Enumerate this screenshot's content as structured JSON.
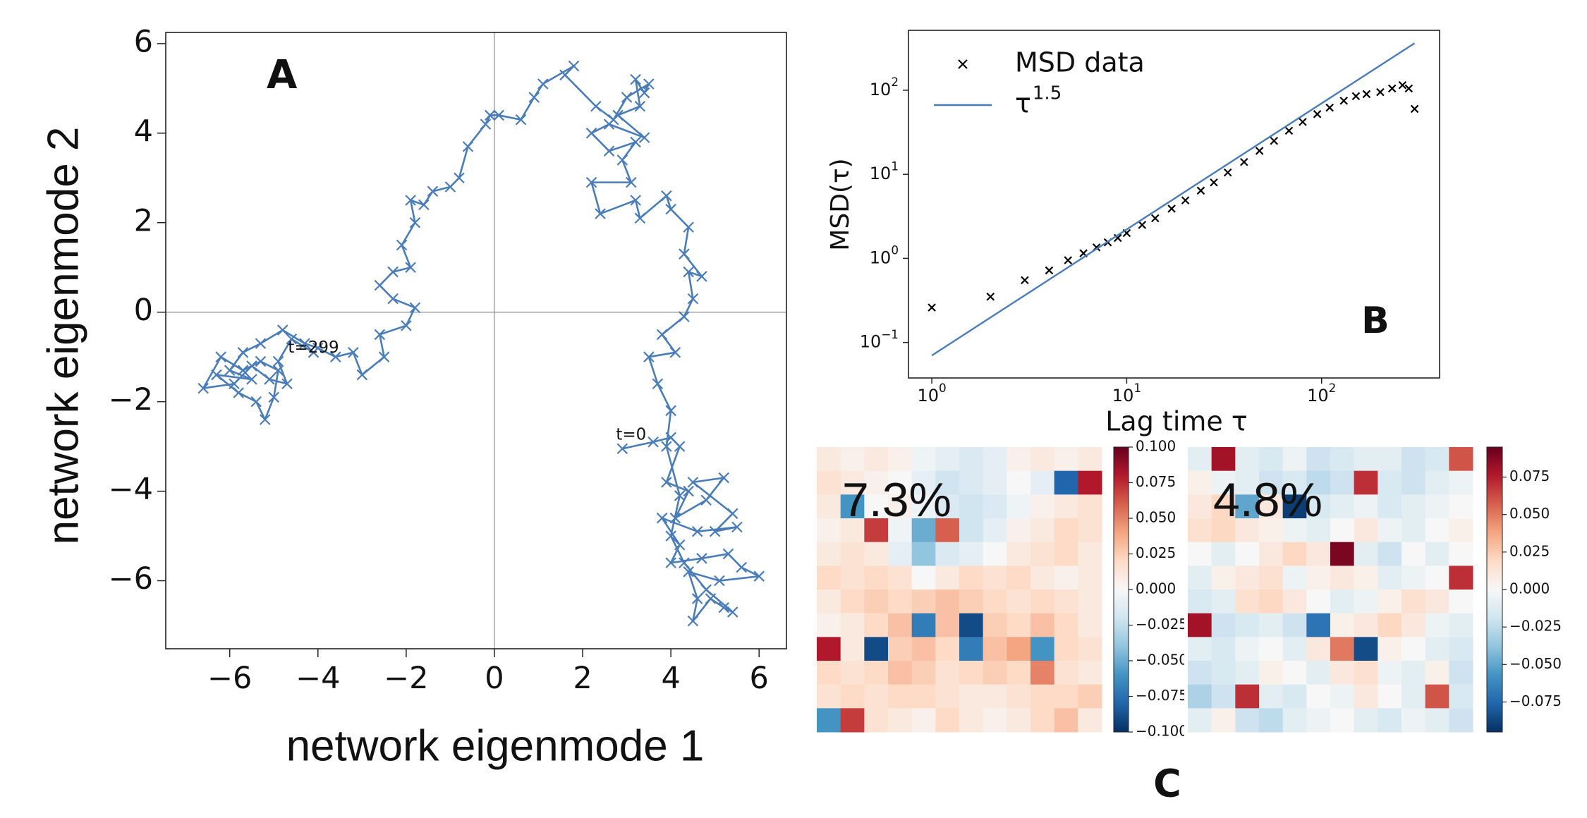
{
  "chart_data": [
    {
      "type": "line",
      "panel_label": "A",
      "xlabel": "network eigenmode 1",
      "ylabel": "network eigenmode 2",
      "color": "#4a7db8",
      "marker": "x",
      "zero_lines": true,
      "xlim": [
        -7.45,
        6.62
      ],
      "ylim": [
        -7.52,
        6.25
      ],
      "xticks": [
        {
          "value": -6,
          "label": "−6"
        },
        {
          "value": -4,
          "label": "−4"
        },
        {
          "value": -2,
          "label": "−2"
        },
        0,
        2,
        4,
        6
      ],
      "yticks": [
        {
          "value": -6,
          "label": "−6"
        },
        {
          "value": -4,
          "label": "−4"
        },
        {
          "value": -2,
          "label": "−2"
        },
        0,
        2,
        4,
        6
      ],
      "annotations": [
        {
          "text": "t=0",
          "x": 3.1,
          "y": -2.75
        },
        {
          "text": "t=299",
          "x": -4.1,
          "y": -0.8
        }
      ],
      "x": [
        2.9,
        3.6,
        4.0,
        4.2,
        3.9,
        4.4,
        4.1,
        4.8,
        5.2,
        4.5,
        5.4,
        5.0,
        5.5,
        4.6,
        3.8,
        4.2,
        4.0,
        4.7,
        5.3,
        5.6,
        6.0,
        5.1,
        4.4,
        4.6,
        4.5,
        4.9,
        5.2,
        5.4,
        4.8,
        4.3,
        4.0,
        4.2,
        3.9,
        4.0,
        3.7,
        3.5,
        4.1,
        3.8,
        4.3,
        4.5,
        4.4,
        4.7,
        4.3,
        4.4,
        4.0,
        3.9,
        3.3,
        3.2,
        2.4,
        2.2,
        3.1,
        2.9,
        3.2,
        2.6,
        2.2,
        2.6,
        3.4,
        2.8,
        3.3,
        3.2,
        3.4,
        3.5,
        3.0,
        2.7,
        2.3,
        1.6,
        1.8,
        1.1,
        0.9,
        0.6,
        0.1,
        -0.1,
        -0.2,
        -0.6,
        -0.8,
        -1.0,
        -1.4,
        -1.6,
        -1.9,
        -1.8,
        -2.1,
        -1.9,
        -2.3,
        -2.6,
        -2.3,
        -1.8,
        -2.0,
        -2.6,
        -2.5,
        -3.0,
        -3.2,
        -3.6,
        -4.0,
        -4.3,
        -4.8,
        -5.3,
        -5.7,
        -6.0,
        -5.5,
        -6.3,
        -5.8,
        -5.4,
        -5.2,
        -5.0,
        -4.9,
        -5.3,
        -5.7,
        -6.2,
        -6.6,
        -5.9,
        -5.5,
        -5.1,
        -4.7,
        -4.9,
        -4.6,
        -4.1
      ],
      "values": [
        -3.05,
        -2.9,
        -2.8,
        -3.0,
        -3.8,
        -4.0,
        -4.6,
        -4.2,
        -3.7,
        -3.8,
        -4.5,
        -4.9,
        -4.8,
        -4.9,
        -4.6,
        -5.2,
        -5.6,
        -5.5,
        -5.4,
        -5.7,
        -5.9,
        -6.0,
        -5.8,
        -6.4,
        -6.9,
        -6.4,
        -6.6,
        -6.7,
        -6.2,
        -5.6,
        -5.0,
        -4.1,
        -3.0,
        -2.2,
        -1.6,
        -1.0,
        -0.9,
        -0.5,
        -0.1,
        0.3,
        0.9,
        0.8,
        1.3,
        1.9,
        2.3,
        2.6,
        2.1,
        2.5,
        2.2,
        2.9,
        2.9,
        3.4,
        3.8,
        3.6,
        4.0,
        4.2,
        3.9,
        4.4,
        4.6,
        5.2,
        4.9,
        5.1,
        4.8,
        4.3,
        4.6,
        5.3,
        5.5,
        5.1,
        4.8,
        4.3,
        4.4,
        4.4,
        4.2,
        3.7,
        3.0,
        2.8,
        2.7,
        2.4,
        2.5,
        2.0,
        1.5,
        1.0,
        0.9,
        0.6,
        0.3,
        0.1,
        -0.3,
        -0.5,
        -1.0,
        -1.4,
        -0.9,
        -1.0,
        -0.8,
        -0.7,
        -0.4,
        -0.7,
        -0.9,
        -1.3,
        -1.5,
        -1.4,
        -1.8,
        -2.0,
        -2.4,
        -1.9,
        -1.3,
        -1.1,
        -1.3,
        -1.0,
        -1.7,
        -1.6,
        -1.2,
        -1.5,
        -1.6,
        -1.1,
        -0.6,
        -0.9
      ]
    },
    {
      "type": "scatter",
      "panel_label": "B",
      "xlabel": "Lag time τ",
      "ylabel": "MSD(τ)",
      "log_x": true,
      "log_y": true,
      "legend": "upper left",
      "xlim": [
        0.759,
        403
      ],
      "ylim": [
        0.0378,
        516
      ],
      "xticks": [
        {
          "value": 1,
          "label": "10",
          "sup": "0"
        },
        {
          "value": 10,
          "label": "10",
          "sup": "1"
        },
        {
          "value": 100,
          "label": "10",
          "sup": "2"
        }
      ],
      "yticks": [
        {
          "value": 0.1,
          "label": "10",
          "sup": "−1"
        },
        {
          "value": 1,
          "label": "10",
          "sup": "0"
        },
        {
          "value": 10,
          "label": "10",
          "sup": "1"
        },
        {
          "value": 100,
          "label": "10",
          "sup": "2"
        }
      ],
      "series": [
        {
          "name": "MSD data",
          "color": "#000000",
          "marker": "x",
          "x": [
            1,
            2,
            3,
            4,
            5,
            6,
            7,
            8,
            9,
            10,
            12,
            14,
            17,
            20,
            24,
            28,
            33,
            40,
            48,
            57,
            68,
            80,
            95,
            110,
            130,
            150,
            170,
            200,
            230,
            260,
            280,
            300
          ],
          "values": [
            0.26,
            0.35,
            0.55,
            0.72,
            0.95,
            1.15,
            1.35,
            1.55,
            1.75,
            2.0,
            2.5,
            3.0,
            3.9,
            4.9,
            6.4,
            8,
            10.5,
            14,
            19,
            25,
            33,
            42,
            52,
            62,
            75,
            85,
            90,
            95,
            105,
            115,
            105,
            60
          ]
        },
        {
          "name": "τ",
          "sup": "1.5",
          "color": "#4a7db8",
          "marker": "line",
          "x": [
            1,
            300
          ],
          "values": [
            0.07,
            363
          ]
        }
      ]
    },
    {
      "type": "heatmap",
      "panel_label": "C",
      "annotation": "7.3%",
      "colormap": "RdBu_r",
      "zlim": [
        -0.1,
        0.1
      ],
      "colorbar_ticks": [
        {
          "value": 0.1,
          "label": "0.100"
        },
        {
          "value": 0.075,
          "label": "0.075"
        },
        {
          "value": 0.05,
          "label": "0.050"
        },
        {
          "value": 0.025,
          "label": "0.025"
        },
        {
          "value": 0,
          "label": "0.000"
        },
        {
          "value": -0.025,
          "label": "−0.025"
        },
        {
          "value": -0.05,
          "label": "−0.050"
        },
        {
          "value": -0.075,
          "label": "−0.075"
        },
        {
          "value": -0.1,
          "label": "−0.100"
        }
      ],
      "values": [
        [
          0.01,
          0.005,
          0.01,
          0.005,
          -0.005,
          -0.01,
          -0.015,
          -0.01,
          0.005,
          0.01,
          0.005,
          0.01
        ],
        [
          0.015,
          0.01,
          0.005,
          0.0,
          -0.01,
          -0.02,
          -0.015,
          -0.01,
          0.0,
          -0.01,
          -0.08,
          0.08
        ],
        [
          0.01,
          -0.06,
          0.0,
          0.005,
          -0.005,
          -0.015,
          -0.02,
          -0.015,
          -0.005,
          0.005,
          0.01,
          0.015
        ],
        [
          0.005,
          0.01,
          0.07,
          -0.005,
          -0.05,
          0.06,
          -0.02,
          -0.01,
          0.005,
          0.01,
          0.02,
          0.015
        ],
        [
          0.01,
          0.015,
          0.01,
          -0.01,
          -0.04,
          -0.015,
          -0.01,
          0.0,
          0.01,
          0.015,
          0.02,
          0.01
        ],
        [
          0.02,
          0.015,
          0.02,
          0.015,
          0.0,
          0.01,
          0.02,
          0.015,
          0.02,
          0.01,
          0.005,
          0.01
        ],
        [
          0.01,
          0.02,
          0.025,
          0.02,
          0.025,
          0.03,
          0.025,
          0.02,
          0.015,
          0.02,
          0.015,
          0.01
        ],
        [
          0.005,
          0.01,
          0.02,
          0.03,
          -0.07,
          0.03,
          -0.09,
          0.025,
          0.02,
          0.03,
          0.02,
          0.01
        ],
        [
          0.08,
          0.01,
          -0.09,
          0.025,
          0.03,
          0.02,
          -0.07,
          0.03,
          0.04,
          -0.06,
          0.02,
          0.015
        ],
        [
          0.02,
          0.015,
          0.02,
          0.03,
          0.025,
          0.015,
          0.02,
          0.025,
          0.02,
          0.05,
          0.015,
          0.01
        ],
        [
          0.015,
          0.02,
          0.015,
          0.02,
          0.02,
          0.015,
          0.01,
          0.01,
          0.015,
          0.02,
          0.02,
          0.025
        ],
        [
          -0.06,
          0.07,
          0.015,
          0.01,
          0.005,
          0.02,
          0.01,
          0.005,
          0.01,
          0.02,
          0.03,
          0.01
        ]
      ]
    },
    {
      "type": "heatmap",
      "annotation": "4.8%",
      "colormap": "RdBu_r",
      "zlim": [
        -0.095,
        0.095
      ],
      "colorbar_ticks": [
        {
          "value": 0.075,
          "label": "0.075"
        },
        {
          "value": 0.05,
          "label": "0.050"
        },
        {
          "value": 0.025,
          "label": "0.025"
        },
        {
          "value": 0,
          "label": "0.000"
        },
        {
          "value": -0.025,
          "label": "−0.025"
        },
        {
          "value": -0.05,
          "label": "−0.050"
        },
        {
          "value": -0.075,
          "label": "−0.075"
        }
      ],
      "values": [
        [
          -0.01,
          0.08,
          -0.01,
          -0.015,
          -0.005,
          -0.02,
          -0.015,
          -0.01,
          -0.01,
          -0.02,
          -0.015,
          0.06
        ],
        [
          0.005,
          -0.005,
          -0.01,
          -0.02,
          -0.015,
          -0.025,
          -0.02,
          0.07,
          -0.015,
          -0.02,
          -0.01,
          -0.005
        ],
        [
          0.01,
          0.02,
          -0.05,
          0.01,
          -0.09,
          -0.015,
          -0.01,
          -0.005,
          -0.015,
          -0.01,
          -0.005,
          0.0
        ],
        [
          0.015,
          0.02,
          0.01,
          0.005,
          -0.005,
          -0.01,
          0.0,
          0.01,
          -0.005,
          -0.01,
          0.0,
          0.005
        ],
        [
          0.0,
          -0.01,
          0.0,
          0.01,
          0.02,
          0.01,
          0.09,
          -0.01,
          -0.02,
          0.0,
          -0.01,
          0.0
        ],
        [
          -0.01,
          0.005,
          0.01,
          0.015,
          -0.005,
          0.005,
          0.01,
          0.005,
          -0.01,
          -0.005,
          0.0,
          0.07
        ],
        [
          -0.015,
          -0.01,
          0.015,
          0.02,
          0.01,
          0.0,
          -0.01,
          -0.005,
          0.005,
          0.015,
          0.01,
          0.0
        ],
        [
          0.08,
          -0.02,
          -0.015,
          -0.01,
          -0.02,
          -0.07,
          0.005,
          0.01,
          0.02,
          0.01,
          -0.005,
          -0.01
        ],
        [
          -0.01,
          -0.015,
          -0.005,
          0.0,
          -0.01,
          0.01,
          0.05,
          -0.085,
          0.005,
          0.0,
          -0.01,
          -0.015
        ],
        [
          -0.02,
          -0.015,
          -0.01,
          0.005,
          0.0,
          -0.01,
          0.01,
          0.015,
          -0.005,
          -0.01,
          0.005,
          -0.02
        ],
        [
          -0.03,
          -0.02,
          0.07,
          -0.01,
          -0.015,
          0.0,
          -0.005,
          0.01,
          0.0,
          -0.01,
          0.06,
          -0.015
        ],
        [
          -0.01,
          0.005,
          -0.02,
          -0.025,
          -0.01,
          -0.005,
          0.0,
          -0.01,
          -0.015,
          -0.005,
          -0.01,
          -0.02
        ]
      ]
    }
  ]
}
